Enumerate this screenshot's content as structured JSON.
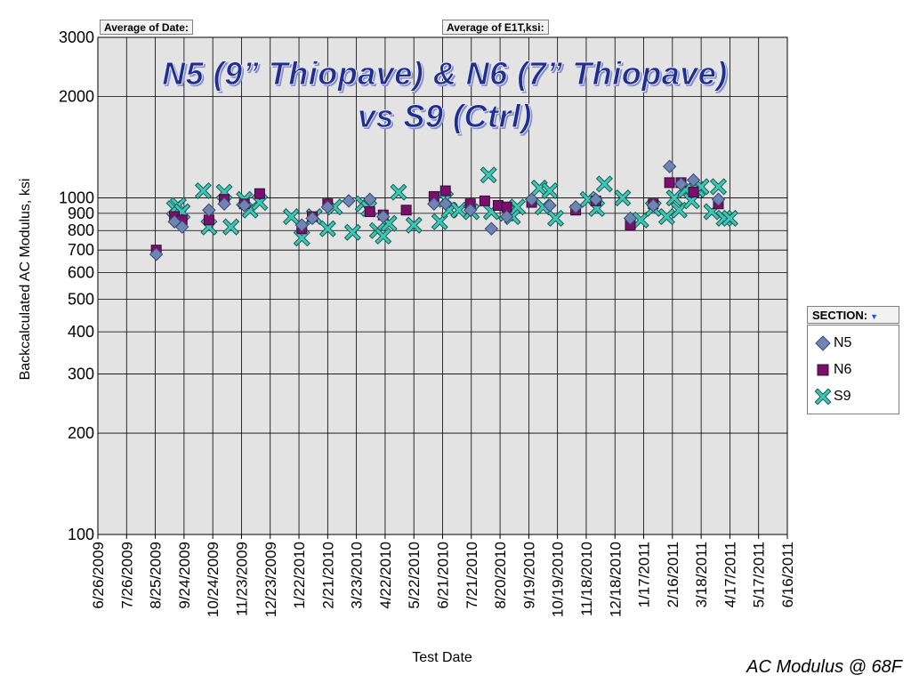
{
  "tags": {
    "date_field": "Average of Date:",
    "value_field": "Average of E1T,ksi:"
  },
  "title_line1": "N5 (9” Thiopave) & N6 (7” Thiopave)",
  "title_line2": "vs S9 (Ctrl)",
  "legend": {
    "header": "SECTION:",
    "items": [
      {
        "name": "N5",
        "marker": "diamond",
        "color": "#6d84b4"
      },
      {
        "name": "N6",
        "marker": "square",
        "color": "#7a0f6e"
      },
      {
        "name": "S9",
        "marker": "x",
        "color": "#3cc7b4"
      }
    ]
  },
  "footnote": "AC Modulus @ 68F",
  "colors": {
    "plot_bg": "#e3e3e3",
    "grid": "#000000"
  },
  "chart_data": {
    "type": "scatter",
    "xlabel": "Test Date",
    "ylabel": "Backcalculated AC Modulus, ksi",
    "y_scale": "log",
    "ylim": [
      100,
      3000
    ],
    "xlim": [
      "6/26/2009",
      "6/16/2011"
    ],
    "grid": true,
    "legend_position": "right",
    "y_ticks": [
      100,
      200,
      300,
      400,
      500,
      600,
      700,
      800,
      900,
      1000,
      2000,
      3000
    ],
    "x_ticks": [
      "6/26/2009",
      "7/26/2009",
      "8/25/2009",
      "9/24/2009",
      "10/24/2009",
      "11/23/2009",
      "12/23/2009",
      "1/22/2010",
      "2/21/2010",
      "3/23/2010",
      "4/22/2010",
      "5/22/2010",
      "6/21/2010",
      "7/21/2010",
      "8/20/2010",
      "9/19/2010",
      "10/19/2010",
      "11/18/2010",
      "12/18/2010",
      "1/17/2011",
      "2/16/2011",
      "3/18/2011",
      "4/17/2011",
      "5/17/2011",
      "6/16/2011"
    ],
    "series": [
      {
        "name": "N5",
        "points": [
          [
            "8/26/2009",
            680
          ],
          [
            "9/14/2009",
            850
          ],
          [
            "9/22/2009",
            820
          ],
          [
            "10/20/2009",
            920
          ],
          [
            "11/5/2009",
            960
          ],
          [
            "11/26/2009",
            950
          ],
          [
            "1/25/2010",
            830
          ],
          [
            "2/5/2010",
            870
          ],
          [
            "2/21/2010",
            940
          ],
          [
            "3/15/2010",
            980
          ],
          [
            "4/6/2010",
            990
          ],
          [
            "4/20/2010",
            880
          ],
          [
            "6/12/2010",
            960
          ],
          [
            "6/24/2010",
            960
          ],
          [
            "7/20/2010",
            920
          ],
          [
            "8/11/2010",
            810
          ],
          [
            "8/27/2010",
            880
          ],
          [
            "9/22/2010",
            990
          ],
          [
            "10/11/2010",
            950
          ],
          [
            "11/7/2010",
            940
          ],
          [
            "11/28/2010",
            990
          ],
          [
            "1/3/2011",
            870
          ],
          [
            "1/27/2011",
            950
          ],
          [
            "2/13/2011",
            1240
          ],
          [
            "2/25/2011",
            1100
          ],
          [
            "3/10/2011",
            1130
          ],
          [
            "4/5/2011",
            990
          ]
        ]
      },
      {
        "name": "N6",
        "points": [
          [
            "8/26/2009",
            700
          ],
          [
            "9/14/2009",
            880
          ],
          [
            "9/22/2009",
            860
          ],
          [
            "10/20/2009",
            860
          ],
          [
            "11/5/2009",
            990
          ],
          [
            "11/26/2009",
            960
          ],
          [
            "12/12/2009",
            1030
          ],
          [
            "1/25/2010",
            810
          ],
          [
            "2/5/2010",
            880
          ],
          [
            "2/21/2010",
            960
          ],
          [
            "4/6/2010",
            910
          ],
          [
            "4/20/2010",
            890
          ],
          [
            "5/14/2010",
            920
          ],
          [
            "6/12/2010",
            1010
          ],
          [
            "6/24/2010",
            1050
          ],
          [
            "7/20/2010",
            960
          ],
          [
            "8/4/2010",
            980
          ],
          [
            "8/18/2010",
            950
          ],
          [
            "8/27/2010",
            940
          ],
          [
            "9/22/2010",
            970
          ],
          [
            "11/7/2010",
            920
          ],
          [
            "11/28/2010",
            980
          ],
          [
            "1/3/2011",
            830
          ],
          [
            "1/27/2011",
            960
          ],
          [
            "2/13/2011",
            1110
          ],
          [
            "2/25/2011",
            1110
          ],
          [
            "3/10/2011",
            1040
          ],
          [
            "4/5/2011",
            960
          ]
        ]
      },
      {
        "name": "S9",
        "points": [
          [
            "9/14/2009",
            930
          ],
          [
            "9/18/2009",
            950
          ],
          [
            "9/22/2009",
            910
          ],
          [
            "10/14/2009",
            1050
          ],
          [
            "10/20/2009",
            820
          ],
          [
            "11/5/2009",
            1040
          ],
          [
            "11/12/2009",
            820
          ],
          [
            "11/26/2009",
            990
          ],
          [
            "12/2/2009",
            920
          ],
          [
            "12/12/2009",
            970
          ],
          [
            "1/14/2010",
            880
          ],
          [
            "1/25/2010",
            760
          ],
          [
            "2/7/2010",
            880
          ],
          [
            "2/21/2010",
            810
          ],
          [
            "2/28/2010",
            940
          ],
          [
            "3/19/2010",
            790
          ],
          [
            "3/30/2010",
            960
          ],
          [
            "4/5/2010",
            930
          ],
          [
            "4/14/2010",
            800
          ],
          [
            "4/20/2010",
            770
          ],
          [
            "4/26/2010",
            840
          ],
          [
            "5/6/2010",
            1040
          ],
          [
            "5/22/2010",
            830
          ],
          [
            "6/18/2010",
            850
          ],
          [
            "6/24/2010",
            990
          ],
          [
            "6/28/2010",
            920
          ],
          [
            "7/8/2010",
            920
          ],
          [
            "7/21/2010",
            910
          ],
          [
            "8/8/2010",
            1170
          ],
          [
            "8/11/2010",
            910
          ],
          [
            "8/27/2010",
            900
          ],
          [
            "9/2/2010",
            880
          ],
          [
            "9/7/2010",
            940
          ],
          [
            "9/30/2010",
            1070
          ],
          [
            "10/4/2010",
            940
          ],
          [
            "10/11/2010",
            1050
          ],
          [
            "10/17/2010",
            870
          ],
          [
            "11/20/2010",
            990
          ],
          [
            "11/29/2010",
            930
          ],
          [
            "12/7/2010",
            1100
          ],
          [
            "12/26/2010",
            1000
          ],
          [
            "1/14/2011",
            860
          ],
          [
            "1/27/2011",
            930
          ],
          [
            "2/10/2011",
            880
          ],
          [
            "2/18/2011",
            1000
          ],
          [
            "2/23/2011",
            920
          ],
          [
            "3/2/2011",
            1060
          ],
          [
            "3/8/2011",
            980
          ],
          [
            "3/14/2011",
            1060
          ],
          [
            "3/18/2011",
            1080
          ],
          [
            "3/29/2011",
            910
          ],
          [
            "4/5/2011",
            1080
          ],
          [
            "4/11/2011",
            870
          ],
          [
            "4/17/2011",
            870
          ]
        ]
      }
    ]
  }
}
